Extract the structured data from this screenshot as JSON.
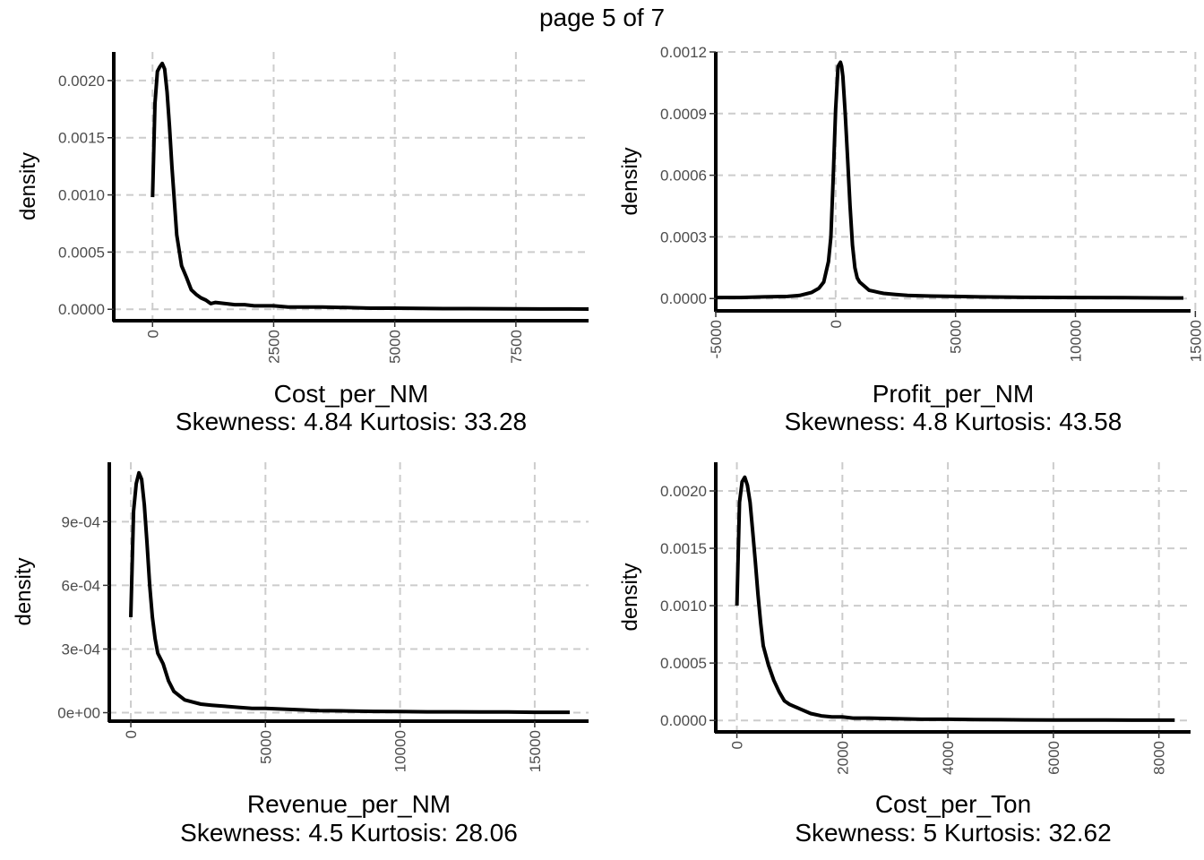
{
  "page_title": "page 5 of 7",
  "chart_data": [
    {
      "type": "line",
      "xlabel": "Cost_per_NM",
      "subtitle": "Skewness: 4.84 Kurtosis: 33.28",
      "ylabel": "density",
      "xlim": [
        -800,
        9000
      ],
      "ylim": [
        -0.0001,
        0.00225
      ],
      "xticks": [
        0,
        2500,
        5000,
        7500
      ],
      "xtick_labels": [
        "0",
        "2500",
        "5000",
        "7500"
      ],
      "yticks": [
        0,
        0.0005,
        0.001,
        0.0015,
        0.002
      ],
      "ytick_labels": [
        "0.0000",
        "0.0005",
        "0.0010",
        "0.0015",
        "0.0020"
      ],
      "grid": true,
      "series": [
        {
          "x": [
            0,
            50,
            100,
            150,
            200,
            250,
            300,
            350,
            400,
            500,
            600,
            700,
            800,
            900,
            1000,
            1100,
            1200,
            1300,
            1500,
            1700,
            1900,
            2100,
            2300,
            2500,
            2800,
            3100,
            3500,
            4000,
            4500,
            5000,
            5500,
            6000,
            6500,
            7000,
            7500,
            8000,
            8500,
            9000
          ],
          "y": [
            0.00098,
            0.0018,
            0.00208,
            0.00212,
            0.00215,
            0.0021,
            0.0019,
            0.0016,
            0.00125,
            0.00065,
            0.00038,
            0.00028,
            0.00017,
            0.00013,
            0.0001,
            8e-05,
            5e-05,
            6e-05,
            5e-05,
            4e-05,
            4e-05,
            3e-05,
            3e-05,
            3e-05,
            2e-05,
            2e-05,
            2e-05,
            1.5e-05,
            1e-05,
            1e-05,
            8e-06,
            6e-06,
            6e-06,
            5e-06,
            4e-06,
            3e-06,
            3e-06,
            2e-06
          ]
        }
      ]
    },
    {
      "type": "line",
      "xlabel": "Profit_per_NM",
      "subtitle": "Skewness: 4.8 Kurtosis: 43.58",
      "ylabel": "density",
      "xlim": [
        -5000,
        14800
      ],
      "ylim": [
        -6e-05,
        0.0012
      ],
      "xticks": [
        -5000,
        0,
        5000,
        10000,
        15000
      ],
      "xtick_labels": [
        "-5000",
        "0",
        "5000",
        "10000",
        "15000"
      ],
      "yticks": [
        0,
        0.0003,
        0.0006,
        0.0009,
        0.0012
      ],
      "ytick_labels": [
        "0.0000",
        "0.0003",
        "0.0006",
        "0.0009",
        "0.0012"
      ],
      "grid": true,
      "series": [
        {
          "x": [
            -5000,
            -4000,
            -3000,
            -2000,
            -1500,
            -1000,
            -700,
            -500,
            -300,
            -200,
            -100,
            0,
            100,
            200,
            250,
            300,
            400,
            500,
            600,
            700,
            800,
            900,
            1000,
            1200,
            1400,
            1600,
            1800,
            2000,
            2500,
            3000,
            4000,
            5000,
            6000,
            8000,
            10000,
            12000,
            14000,
            14500
          ],
          "y": [
            5e-06,
            5e-06,
            8e-06,
            1e-05,
            1.5e-05,
            3e-05,
            5e-05,
            8e-05,
            0.00018,
            0.0003,
            0.0006,
            0.00092,
            0.00113,
            0.00115,
            0.00113,
            0.00108,
            0.0009,
            0.00068,
            0.00045,
            0.00026,
            0.00015,
            0.0001,
            8e-05,
            6e-05,
            4e-05,
            3.5e-05,
            3e-05,
            2.5e-05,
            2e-05,
            1.5e-05,
            1.2e-05,
            1e-05,
            8e-06,
            6e-06,
            5e-06,
            4e-06,
            3e-06,
            3e-06
          ]
        }
      ]
    },
    {
      "type": "line",
      "xlabel": "Revenue_per_NM",
      "subtitle": "Skewness: 4.5 Kurtosis: 28.06",
      "ylabel": "density",
      "xlim": [
        -800,
        17000
      ],
      "ylim": [
        -4e-05,
        0.00118
      ],
      "xticks": [
        0,
        5000,
        10000,
        15000
      ],
      "xtick_labels": [
        "0",
        "5000",
        "10000",
        "15000"
      ],
      "yticks": [
        0,
        0.0003,
        0.0006,
        0.0009
      ],
      "ytick_labels": [
        "0e+00",
        "3e-04",
        "6e-04",
        "9e-04"
      ],
      "grid": true,
      "series": [
        {
          "x": [
            0,
            100,
            200,
            300,
            400,
            500,
            600,
            700,
            800,
            900,
            1000,
            1200,
            1400,
            1600,
            1800,
            2000,
            2300,
            2600,
            3000,
            3500,
            4000,
            4500,
            5000,
            6000,
            7000,
            8000,
            9000,
            10000,
            11000,
            12000,
            13000,
            14000,
            15000,
            16000,
            16300
          ],
          "y": [
            0.00045,
            0.00095,
            0.00108,
            0.00113,
            0.0011,
            0.00098,
            0.0008,
            0.0006,
            0.00045,
            0.00035,
            0.00028,
            0.00023,
            0.00015,
            0.0001,
            8e-05,
            6e-05,
            5e-05,
            4e-05,
            3.5e-05,
            3e-05,
            2.5e-05,
            2e-05,
            2e-05,
            1.5e-05,
            1e-05,
            8e-06,
            6e-06,
            5e-06,
            4e-06,
            4e-06,
            3e-06,
            3e-06,
            2e-06,
            2e-06,
            2e-06
          ]
        }
      ]
    },
    {
      "type": "line",
      "xlabel": "Cost_per_Ton",
      "subtitle": "Skewness: 5 Kurtosis: 32.62",
      "ylabel": "density",
      "xlim": [
        -400,
        8600
      ],
      "ylim": [
        -0.0001,
        0.00225
      ],
      "xticks": [
        0,
        2000,
        4000,
        6000,
        8000
      ],
      "xtick_labels": [
        "0",
        "2000",
        "4000",
        "6000",
        "8000"
      ],
      "yticks": [
        0,
        0.0005,
        0.001,
        0.0015,
        0.002
      ],
      "ytick_labels": [
        "0.0000",
        "0.0005",
        "0.0010",
        "0.0015",
        "0.0020"
      ],
      "grid": true,
      "series": [
        {
          "x": [
            0,
            50,
            100,
            150,
            200,
            250,
            300,
            350,
            400,
            450,
            500,
            600,
            700,
            800,
            900,
            1000,
            1200,
            1400,
            1600,
            1800,
            2000,
            2200,
            2500,
            3000,
            3500,
            4000,
            4500,
            5000,
            5500,
            6000,
            6500,
            7000,
            7500,
            8000,
            8300
          ],
          "y": [
            0.001,
            0.0019,
            0.00208,
            0.00212,
            0.00205,
            0.0019,
            0.00165,
            0.00138,
            0.0011,
            0.00085,
            0.00065,
            0.00048,
            0.00035,
            0.00025,
            0.00017,
            0.00014,
            0.0001,
            6e-05,
            4e-05,
            3e-05,
            3e-05,
            2e-05,
            2e-05,
            1.5e-05,
            1e-05,
            1e-05,
            8e-06,
            6e-06,
            5e-06,
            4e-06,
            3e-06,
            3e-06,
            2e-06,
            2e-06,
            2e-06
          ]
        }
      ]
    }
  ]
}
